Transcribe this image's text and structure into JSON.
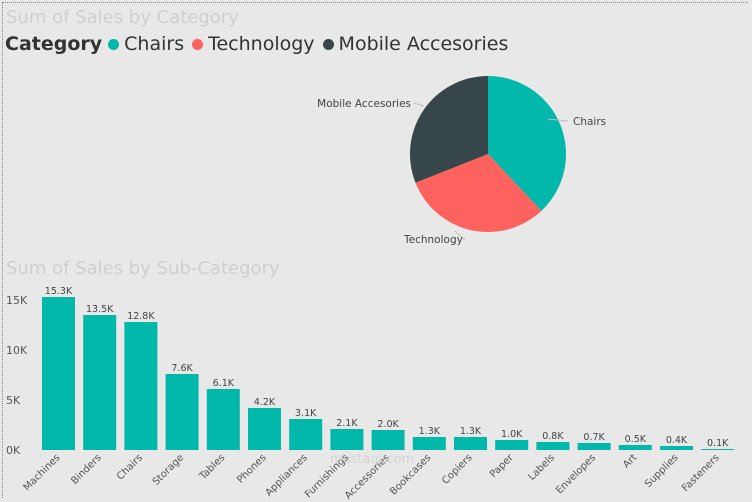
{
  "colors": {
    "chairs": "#01b8aa",
    "technology": "#fd625e",
    "mobile": "#374649",
    "bar": "#01b8aa"
  },
  "pie_chart": {
    "title": "Sum of Sales by Category",
    "legend_title": "Category",
    "legend": [
      "Chairs",
      "Technology",
      "Mobile Accesories"
    ]
  },
  "bar_chart": {
    "title": "Sum of Sales by Sub-Category"
  },
  "watermark": "mostaql.com",
  "chart_data": [
    {
      "type": "pie",
      "title": "Sum of Sales by Category",
      "legend_title": "Category",
      "slices": [
        {
          "label": "Chairs",
          "value": 38,
          "color": "#01b8aa"
        },
        {
          "label": "Technology",
          "value": 31,
          "color": "#fd625e"
        },
        {
          "label": "Mobile Accesories",
          "value": 31,
          "color": "#374649"
        }
      ]
    },
    {
      "type": "bar",
      "title": "Sum of Sales by Sub-Category",
      "categories": [
        "Machines",
        "Binders",
        "Chairs",
        "Storage",
        "Tables",
        "Phones",
        "Appliances",
        "Furnishings",
        "Accessories",
        "Bookcases",
        "Copiers",
        "Paper",
        "Labels",
        "Envelopes",
        "Art",
        "Supplies",
        "Fasteners"
      ],
      "values": [
        15.3,
        13.5,
        12.8,
        7.6,
        6.1,
        4.2,
        3.1,
        2.1,
        2.0,
        1.3,
        1.3,
        1.0,
        0.8,
        0.7,
        0.5,
        0.4,
        0.1
      ],
      "data_labels": [
        "15.3K",
        "13.5K",
        "12.8K",
        "7.6K",
        "6.1K",
        "4.2K",
        "3.1K",
        "2.1K",
        "2.0K",
        "1.3K",
        "1.3K",
        "1.0K",
        "0.8K",
        "0.7K",
        "0.5K",
        "0.4K",
        "0.1K"
      ],
      "yticks": [
        0,
        5,
        10,
        15
      ],
      "ytick_labels": [
        "0K",
        "5K",
        "10K",
        "15K"
      ],
      "ylim": [
        0,
        16
      ],
      "grid": false
    }
  ]
}
